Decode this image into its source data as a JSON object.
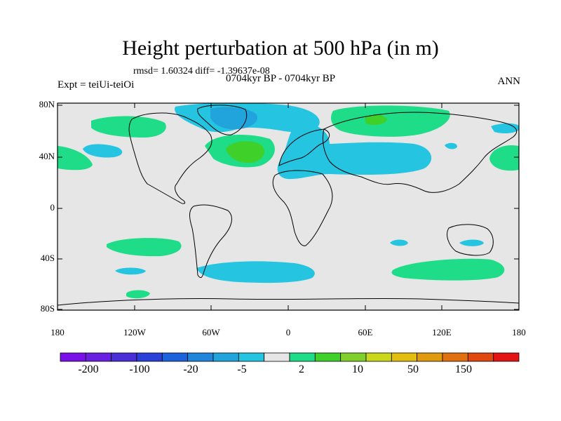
{
  "title": "Height perturbation at 500 hPa (in m)",
  "stats": "rmsd= 1.60324 diff= -1.39637e-08",
  "period": "0704kyr BP - 0704kyr BP",
  "experiment": "Expt = teiUi-teiOi",
  "season": "ANN",
  "lat_ticks": [
    "80N",
    "40N",
    "0",
    "40S",
    "80S"
  ],
  "lon_ticks": [
    "180",
    "120W",
    "60W",
    "0",
    "60E",
    "120E",
    "180"
  ],
  "colorbar": {
    "colors": [
      "#7a10e8",
      "#6a20e0",
      "#4a2ed8",
      "#2a40d8",
      "#1c62dc",
      "#1f86dc",
      "#21a4dc",
      "#25c4e0",
      "#e6e6e6",
      "#1fdc88",
      "#3fd02a",
      "#80cf2a",
      "#c9d81c",
      "#e2be10",
      "#e09a10",
      "#e07010",
      "#e04810",
      "#e21414"
    ],
    "labels": [
      "-200",
      "-100",
      "-20",
      "-5",
      "2",
      "10",
      "50",
      "150"
    ]
  },
  "colors": {
    "background": "#e6e6e6",
    "neg_light": "#25c4e0",
    "neg_mid": "#21a4dc",
    "pos_light": "#1fdc88",
    "pos_mid": "#3fd02a"
  }
}
